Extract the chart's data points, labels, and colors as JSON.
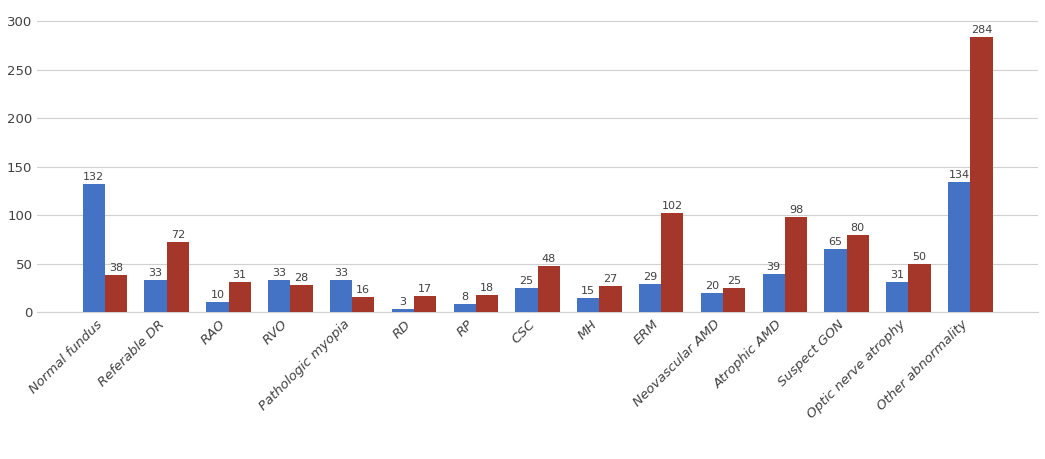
{
  "categories": [
    "Normal fundus",
    "Referable DR",
    "RAO",
    "RVO",
    "Pathologic myopia",
    "RD",
    "RP",
    "CSC",
    "MH",
    "ERM",
    "Neovascular AMD",
    "Atrophic AMD",
    "Suspect GON",
    "Optic nerve atrophy",
    "Other abnormality"
  ],
  "blue_values": [
    132,
    33,
    10,
    33,
    33,
    3,
    8,
    25,
    15,
    29,
    20,
    39,
    65,
    31,
    134
  ],
  "red_values": [
    38,
    72,
    31,
    28,
    16,
    17,
    18,
    48,
    27,
    102,
    25,
    98,
    80,
    50,
    284
  ],
  "blue_color": "#4472C4",
  "red_color": "#A5372A",
  "ylim": [
    0,
    315
  ],
  "yticks": [
    0,
    50,
    100,
    150,
    200,
    250,
    300
  ],
  "bar_width": 0.36,
  "label_fontsize": 8.0,
  "tick_fontsize": 9.5,
  "legend_fontsize": 10,
  "grid_color": "#d0d0d0",
  "background_color": "#ffffff",
  "text_color": "#404040"
}
